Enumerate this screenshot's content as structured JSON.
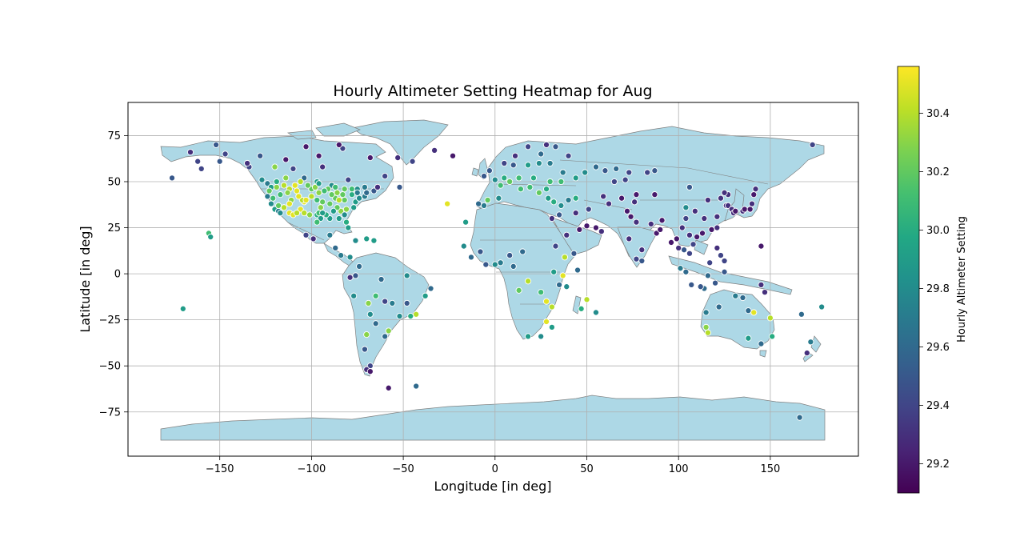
{
  "chart_data": {
    "type": "scatter",
    "title": "Hourly Altimeter Setting Heatmap for Aug",
    "xlabel": "Longitude [in deg]",
    "ylabel": "Latitude [in deg]",
    "xlim": [
      -200,
      198
    ],
    "ylim": [
      -99,
      93
    ],
    "xticks": [
      -150,
      -100,
      -50,
      0,
      50,
      100,
      150
    ],
    "yticks": [
      -75,
      -50,
      -25,
      0,
      25,
      50,
      75
    ],
    "xtick_labels": [
      "−150",
      "−100",
      "−50",
      "0",
      "50",
      "100",
      "150"
    ],
    "ytick_labels": [
      "−75",
      "−50",
      "−25",
      "0",
      "25",
      "50",
      "75"
    ],
    "grid": true,
    "background_map": "world country outlines, light blue fill",
    "land_color": "#add8e6",
    "border_color": "#808080",
    "colormap": "viridis",
    "colorbar": {
      "label": "Hourly Altimeter Setting",
      "range": [
        29.1,
        30.56
      ],
      "ticks": [
        29.2,
        29.4,
        29.6,
        29.8,
        30.0,
        30.2,
        30.4
      ],
      "tick_labels": [
        "29.2",
        "29.4",
        "29.6",
        "29.8",
        "30.0",
        "30.2",
        "30.4"
      ]
    },
    "points": [
      [
        -176,
        52,
        29.5
      ],
      [
        -170,
        -19,
        29.9
      ],
      [
        -166,
        66,
        29.3
      ],
      [
        -162,
        61,
        29.4
      ],
      [
        -160,
        57,
        29.4
      ],
      [
        -156,
        22,
        30.1
      ],
      [
        -155,
        20,
        29.9
      ],
      [
        -152,
        70,
        29.5
      ],
      [
        -150,
        61,
        29.5
      ],
      [
        -147,
        65,
        29.4
      ],
      [
        -134,
        58,
        29.4
      ],
      [
        -135,
        60,
        29.3
      ],
      [
        -128,
        64,
        29.5
      ],
      [
        -124,
        49,
        29.7
      ],
      [
        -122,
        47,
        29.9
      ],
      [
        -123,
        45,
        30.2
      ],
      [
        -122,
        38,
        29.8
      ],
      [
        -120,
        35,
        29.9
      ],
      [
        -118,
        34,
        29.7
      ],
      [
        -117,
        33,
        29.8
      ],
      [
        -115,
        36,
        30.4
      ],
      [
        -112,
        33,
        30.5
      ],
      [
        -111,
        40,
        30.3
      ],
      [
        -112,
        46,
        30.4
      ],
      [
        -108,
        45,
        30.5
      ],
      [
        -106,
        35,
        30.5
      ],
      [
        -104,
        39,
        30.5
      ],
      [
        -105,
        40,
        30.4
      ],
      [
        -100,
        46,
        30.2
      ],
      [
        -97,
        32,
        30.0
      ],
      [
        -95,
        30,
        29.9
      ],
      [
        -97,
        40,
        30.1
      ],
      [
        -94,
        39,
        30.2
      ],
      [
        -90,
        30,
        29.9
      ],
      [
        -90,
        38,
        30.2
      ],
      [
        -87,
        41,
        30.2
      ],
      [
        -84,
        34,
        30.3
      ],
      [
        -81,
        28,
        30.0
      ],
      [
        -80,
        25,
        29.9
      ],
      [
        -82,
        40,
        30.2
      ],
      [
        -78,
        43,
        30.0
      ],
      [
        -76,
        39,
        29.9
      ],
      [
        -74,
        41,
        29.8
      ],
      [
        -71,
        42,
        29.7
      ],
      [
        -70,
        44,
        29.6
      ],
      [
        -66,
        45,
        29.5
      ],
      [
        -64,
        47,
        29.3
      ],
      [
        -60,
        53,
        29.4
      ],
      [
        -52,
        47,
        29.5
      ],
      [
        -53,
        63,
        29.3
      ],
      [
        -45,
        61,
        29.4
      ],
      [
        -33,
        67,
        29.3
      ],
      [
        -23,
        64,
        29.2
      ],
      [
        -114,
        62,
        29.2
      ],
      [
        -110,
        57,
        29.4
      ],
      [
        -104,
        52,
        29.6
      ],
      [
        -97,
        50,
        29.9
      ],
      [
        -89,
        48,
        29.8
      ],
      [
        -80,
        51,
        29.4
      ],
      [
        -94,
        58,
        29.3
      ],
      [
        -83,
        68,
        29.4
      ],
      [
        -96,
        64,
        29.2
      ],
      [
        -103,
        69,
        29.2
      ],
      [
        -85,
        70,
        29.2
      ],
      [
        -68,
        63,
        29.2
      ],
      [
        -99,
        19,
        29.3
      ],
      [
        -103,
        21,
        29.4
      ],
      [
        -90,
        21,
        29.7
      ],
      [
        -87,
        14,
        29.6
      ],
      [
        -84,
        10,
        29.7
      ],
      [
        -79,
        9,
        29.8
      ],
      [
        -76,
        18,
        29.8
      ],
      [
        -66,
        18,
        29.9
      ],
      [
        -70,
        19,
        29.9
      ],
      [
        -74,
        4,
        29.6
      ],
      [
        -76,
        -1,
        29.5
      ],
      [
        -79,
        -2,
        29.3
      ],
      [
        -77,
        -12,
        29.8
      ],
      [
        -69,
        -16,
        30.3
      ],
      [
        -68,
        -22,
        29.8
      ],
      [
        -65,
        -12,
        30.1
      ],
      [
        -62,
        -3,
        29.6
      ],
      [
        -60,
        -15,
        29.4
      ],
      [
        -56,
        -16,
        29.7
      ],
      [
        -52,
        -23,
        29.8
      ],
      [
        -48,
        -16,
        29.5
      ],
      [
        -46,
        -23,
        30.0
      ],
      [
        -43,
        -22,
        30.4
      ],
      [
        -38,
        -12,
        29.9
      ],
      [
        -35,
        -8,
        29.6
      ],
      [
        -48,
        -1,
        29.8
      ],
      [
        -60,
        -34,
        29.6
      ],
      [
        -58,
        -31,
        30.3
      ],
      [
        -65,
        -27,
        29.6
      ],
      [
        -70,
        -33,
        30.3
      ],
      [
        -71,
        -41,
        29.5
      ],
      [
        -68,
        -50,
        29.4
      ],
      [
        -70,
        -52,
        29.3
      ],
      [
        -68,
        -53,
        29.2
      ],
      [
        -58,
        -62,
        29.2
      ],
      [
        -43,
        -61,
        29.6
      ],
      [
        -26,
        38,
        30.5
      ],
      [
        -16,
        28,
        29.9
      ],
      [
        -17,
        15,
        29.8
      ],
      [
        -13,
        9,
        29.6
      ],
      [
        -8,
        12,
        29.5
      ],
      [
        -5,
        5,
        29.5
      ],
      [
        0,
        5,
        29.8
      ],
      [
        3,
        6,
        29.7
      ],
      [
        8,
        10,
        29.5
      ],
      [
        15,
        12,
        29.6
      ],
      [
        10,
        4,
        29.6
      ],
      [
        13,
        -9,
        30.2
      ],
      [
        18,
        -4,
        30.4
      ],
      [
        25,
        -10,
        30.1
      ],
      [
        28,
        -15,
        30.5
      ],
      [
        31,
        -18,
        30.4
      ],
      [
        28,
        -26,
        30.5
      ],
      [
        18,
        -34,
        29.9
      ],
      [
        25,
        -34,
        29.8
      ],
      [
        31,
        -29,
        29.9
      ],
      [
        35,
        -6,
        29.6
      ],
      [
        37,
        -1,
        30.5
      ],
      [
        39,
        -7,
        29.8
      ],
      [
        32,
        1,
        29.9
      ],
      [
        38,
        9,
        30.4
      ],
      [
        45,
        2,
        29.6
      ],
      [
        43,
        11,
        29.5
      ],
      [
        47,
        -19,
        30.0
      ],
      [
        50,
        -14,
        30.4
      ],
      [
        55,
        -21,
        29.8
      ],
      [
        31,
        30,
        29.3
      ],
      [
        33,
        15,
        29.4
      ],
      [
        39,
        21,
        29.3
      ],
      [
        46,
        24,
        29.2
      ],
      [
        50,
        26,
        29.2
      ],
      [
        55,
        25,
        29.2
      ],
      [
        58,
        23,
        29.3
      ],
      [
        51,
        35,
        29.4
      ],
      [
        44,
        33,
        29.3
      ],
      [
        35,
        32,
        29.5
      ],
      [
        36,
        37,
        29.8
      ],
      [
        29,
        41,
        29.9
      ],
      [
        32,
        39,
        30.0
      ],
      [
        40,
        40,
        29.7
      ],
      [
        44,
        41,
        30.0
      ],
      [
        -9,
        38,
        29.6
      ],
      [
        -4,
        40,
        30.2
      ],
      [
        2,
        41,
        29.8
      ],
      [
        -6,
        37,
        29.7
      ],
      [
        3,
        48,
        30.1
      ],
      [
        0,
        51,
        29.8
      ],
      [
        -6,
        53,
        29.5
      ],
      [
        -3,
        56,
        29.5
      ],
      [
        5,
        52,
        30.0
      ],
      [
        8,
        50,
        30.2
      ],
      [
        13,
        52,
        30.1
      ],
      [
        18,
        59,
        29.9
      ],
      [
        24,
        60,
        29.8
      ],
      [
        10,
        59,
        29.5
      ],
      [
        5,
        60,
        29.4
      ],
      [
        11,
        64,
        29.3
      ],
      [
        18,
        69,
        29.4
      ],
      [
        25,
        65,
        29.6
      ],
      [
        30,
        60,
        29.7
      ],
      [
        37,
        55,
        29.7
      ],
      [
        40,
        64,
        29.4
      ],
      [
        33,
        69,
        29.5
      ],
      [
        28,
        70,
        29.3
      ],
      [
        14,
        46,
        30.1
      ],
      [
        19,
        47,
        30.1
      ],
      [
        21,
        52,
        30.0
      ],
      [
        24,
        44,
        30.2
      ],
      [
        28,
        46,
        30.0
      ],
      [
        30,
        50,
        30.1
      ],
      [
        36,
        50,
        30.1
      ],
      [
        44,
        52,
        29.9
      ],
      [
        49,
        55,
        29.8
      ],
      [
        55,
        58,
        29.6
      ],
      [
        60,
        56,
        29.5
      ],
      [
        65,
        50,
        29.4
      ],
      [
        66,
        57,
        29.6
      ],
      [
        73,
        55,
        29.4
      ],
      [
        83,
        55,
        29.4
      ],
      [
        87,
        56,
        29.5
      ],
      [
        71,
        51,
        29.4
      ],
      [
        77,
        43,
        29.2
      ],
      [
        69,
        41,
        29.2
      ],
      [
        76,
        39,
        29.3
      ],
      [
        62,
        38,
        29.3
      ],
      [
        59,
        42,
        29.3
      ],
      [
        72,
        34,
        29.2
      ],
      [
        74,
        31,
        29.2
      ],
      [
        77,
        28,
        29.3
      ],
      [
        73,
        19,
        29.3
      ],
      [
        80,
        13,
        29.3
      ],
      [
        77,
        8,
        29.4
      ],
      [
        80,
        7,
        29.5
      ],
      [
        88,
        22,
        29.2
      ],
      [
        85,
        27,
        29.3
      ],
      [
        90,
        24,
        29.2
      ],
      [
        96,
        17,
        29.2
      ],
      [
        99,
        19,
        29.2
      ],
      [
        100,
        14,
        29.3
      ],
      [
        103,
        13,
        29.5
      ],
      [
        106,
        11,
        29.4
      ],
      [
        101,
        3,
        29.7
      ],
      [
        104,
        1,
        29.6
      ],
      [
        106,
        21,
        29.3
      ],
      [
        108,
        16,
        29.4
      ],
      [
        110,
        20,
        29.2
      ],
      [
        113,
        22,
        29.2
      ],
      [
        114,
        30,
        29.3
      ],
      [
        116,
        40,
        29.3
      ],
      [
        121,
        31,
        29.3
      ],
      [
        121,
        25,
        29.3
      ],
      [
        118,
        24,
        29.2
      ],
      [
        109,
        34,
        29.3
      ],
      [
        104,
        30,
        29.4
      ],
      [
        104,
        36,
        29.8
      ],
      [
        102,
        25,
        29.3
      ],
      [
        91,
        29,
        29.2
      ],
      [
        87,
        43,
        29.2
      ],
      [
        126,
        37,
        29.3
      ],
      [
        127,
        37,
        29.3
      ],
      [
        129,
        35,
        29.3
      ],
      [
        130,
        33,
        29.3
      ],
      [
        131,
        34,
        29.2
      ],
      [
        135,
        34,
        29.3
      ],
      [
        136,
        35,
        29.2
      ],
      [
        139,
        35,
        29.2
      ],
      [
        140,
        38,
        29.3
      ],
      [
        141,
        43,
        29.2
      ],
      [
        142,
        46,
        29.3
      ],
      [
        127,
        43,
        29.3
      ],
      [
        125,
        44,
        29.3
      ],
      [
        123,
        41,
        29.3
      ],
      [
        106,
        47,
        29.5
      ],
      [
        114,
        -8,
        29.6
      ],
      [
        112,
        -7,
        29.5
      ],
      [
        107,
        -6,
        29.5
      ],
      [
        116,
        -1,
        29.6
      ],
      [
        120,
        -5,
        29.5
      ],
      [
        125,
        1,
        29.5
      ],
      [
        117,
        6,
        29.4
      ],
      [
        125,
        7,
        29.4
      ],
      [
        121,
        14,
        29.3
      ],
      [
        123,
        10,
        29.4
      ],
      [
        145,
        15,
        29.2
      ],
      [
        145,
        -6,
        29.3
      ],
      [
        147,
        -10,
        29.3
      ],
      [
        135,
        -13,
        29.6
      ],
      [
        131,
        -12,
        29.7
      ],
      [
        138,
        -20,
        29.6
      ],
      [
        141,
        -21,
        30.5
      ],
      [
        150,
        -24,
        30.4
      ],
      [
        151,
        -34,
        30.0
      ],
      [
        145,
        -38,
        29.6
      ],
      [
        138,
        -35,
        29.9
      ],
      [
        116,
        -32,
        30.4
      ],
      [
        115,
        -29,
        30.3
      ],
      [
        115,
        -21,
        29.7
      ],
      [
        122,
        -18,
        29.6
      ],
      [
        167,
        -22,
        29.6
      ],
      [
        172,
        -37,
        29.7
      ],
      [
        170,
        -43,
        29.3
      ],
      [
        166,
        -78,
        29.6
      ],
      [
        178,
        -18,
        29.8
      ],
      [
        173,
        70,
        29.4
      ],
      [
        -120,
        58,
        30.3
      ],
      [
        -127,
        51,
        29.8
      ],
      [
        -119,
        50,
        30.0
      ],
      [
        -114,
        52,
        30.3
      ],
      [
        -106,
        50,
        30.4
      ],
      [
        -98,
        47,
        30.3
      ],
      [
        -91,
        46,
        30.2
      ],
      [
        -86,
        44,
        30.3
      ],
      [
        -82,
        46,
        30.2
      ],
      [
        -78,
        46,
        30.1
      ],
      [
        -75,
        46,
        29.8
      ],
      [
        -71,
        47,
        29.7
      ],
      [
        -110,
        32,
        30.5
      ],
      [
        -101,
        32,
        30.3
      ],
      [
        -97,
        28,
        30.1
      ],
      [
        -92,
        32,
        30.0
      ],
      [
        -86,
        36,
        30.2
      ],
      [
        -81,
        35,
        30.3
      ],
      [
        -77,
        36,
        29.9
      ],
      [
        -89,
        43,
        30.2
      ],
      [
        -93,
        45,
        30.1
      ],
      [
        -100,
        42,
        30.4
      ],
      [
        -107,
        42,
        30.5
      ],
      [
        -117,
        43,
        30.1
      ],
      [
        -119,
        47,
        30.3
      ],
      [
        -112,
        38,
        30.5
      ],
      [
        -104,
        33,
        30.4
      ],
      [
        -95,
        36,
        30.3
      ],
      [
        -85,
        40,
        30.4
      ],
      [
        -88,
        34,
        29.9
      ],
      [
        -118,
        37,
        30.2
      ],
      [
        -121,
        41,
        30.1
      ],
      [
        -124,
        42,
        29.7
      ],
      [
        -115,
        48,
        30.4
      ],
      [
        -109,
        48,
        30.5
      ],
      [
        -102,
        48,
        30.2
      ],
      [
        -96,
        44,
        30.3
      ],
      [
        -82,
        32,
        29.8
      ],
      [
        -85,
        30,
        29.9
      ],
      [
        -96,
        33,
        30.1
      ],
      [
        -108,
        33,
        30.4
      ],
      [
        -113,
        44,
        30.3
      ],
      [
        -75,
        44,
        29.7
      ],
      [
        -96,
        49,
        29.9
      ],
      [
        -103,
        40,
        30.5
      ],
      [
        -87,
        47,
        30.1
      ],
      [
        -94,
        33,
        29.9
      ],
      [
        -83,
        43,
        30.2
      ]
    ]
  }
}
